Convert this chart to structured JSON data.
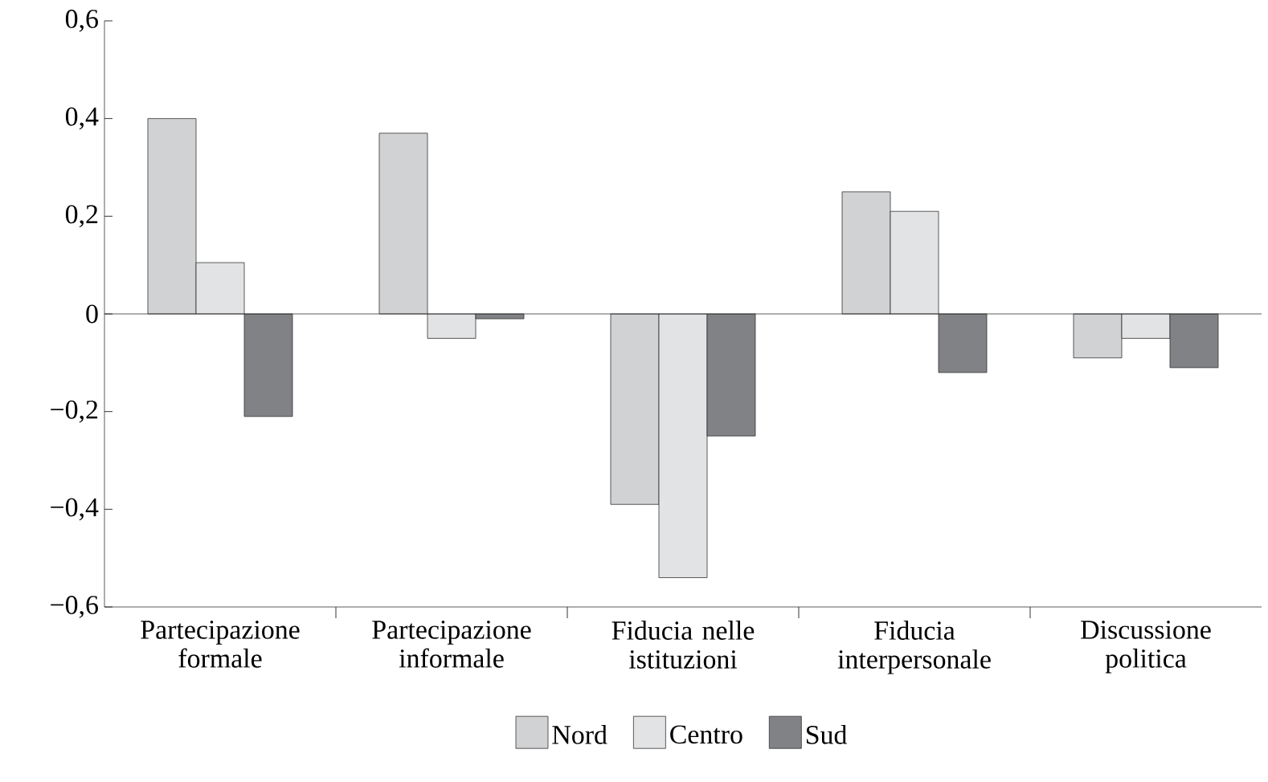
{
  "chart_data": {
    "type": "bar",
    "categories": [
      "Partecipazione formale",
      "Partecipazione informale",
      "Fiducia nelle istituzioni",
      "Fiducia interpersonale",
      "Discussione politica"
    ],
    "series": [
      {
        "name": "Nord",
        "color": "#d1d2d4",
        "values": [
          0.4,
          0.37,
          -0.39,
          0.25,
          -0.09
        ]
      },
      {
        "name": "Centro",
        "color": "#e2e3e4",
        "values": [
          0.105,
          -0.05,
          -0.54,
          0.21,
          -0.05
        ]
      },
      {
        "name": "Sud",
        "color": "#808285",
        "values": [
          -0.21,
          -0.01,
          -0.25,
          -0.12,
          -0.11
        ]
      }
    ],
    "ylim": [
      -0.6,
      0.6
    ],
    "yticks": [
      {
        "value": -0.6,
        "label": "−0,6"
      },
      {
        "value": -0.4,
        "label": "−0,4"
      },
      {
        "value": -0.2,
        "label": "−0,2"
      },
      {
        "value": 0,
        "label": "0"
      },
      {
        "value": 0.2,
        "label": "0,2"
      },
      {
        "value": 0.4,
        "label": "0,4"
      },
      {
        "value": 0.6,
        "label": "0,6"
      }
    ],
    "legend": "bottom"
  }
}
